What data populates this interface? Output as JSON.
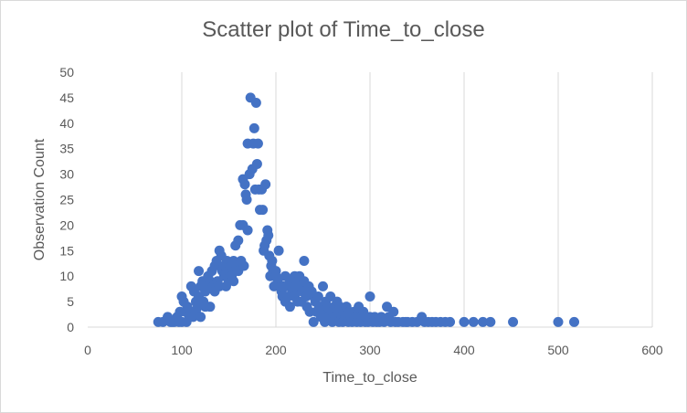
{
  "chart_data": {
    "type": "scatter",
    "title": "Scatter plot of Time_to_close",
    "xlabel": "Time_to_close",
    "ylabel": "Observation Count",
    "xlim": [
      0,
      600
    ],
    "ylim": [
      0,
      50
    ],
    "xticks": [
      0,
      100,
      200,
      300,
      400,
      500,
      600
    ],
    "yticks": [
      0,
      5,
      10,
      15,
      20,
      25,
      30,
      35,
      40,
      45,
      50
    ],
    "grid": "vertical",
    "marker_color": "#4472c4",
    "series": [
      {
        "points": [
          [
            75,
            1
          ],
          [
            80,
            1
          ],
          [
            85,
            2
          ],
          [
            88,
            1
          ],
          [
            90,
            1
          ],
          [
            92,
            1
          ],
          [
            95,
            2
          ],
          [
            97,
            1
          ],
          [
            98,
            3
          ],
          [
            100,
            6
          ],
          [
            100,
            1
          ],
          [
            102,
            5
          ],
          [
            104,
            3
          ],
          [
            105,
            1
          ],
          [
            106,
            4
          ],
          [
            108,
            2
          ],
          [
            110,
            8
          ],
          [
            110,
            3
          ],
          [
            112,
            2
          ],
          [
            113,
            7
          ],
          [
            115,
            5
          ],
          [
            115,
            3
          ],
          [
            117,
            4
          ],
          [
            118,
            11
          ],
          [
            118,
            6
          ],
          [
            120,
            8
          ],
          [
            120,
            2
          ],
          [
            122,
            9
          ],
          [
            123,
            5
          ],
          [
            125,
            7
          ],
          [
            125,
            4
          ],
          [
            127,
            8
          ],
          [
            128,
            10
          ],
          [
            130,
            9
          ],
          [
            130,
            4
          ],
          [
            132,
            11
          ],
          [
            133,
            8
          ],
          [
            135,
            12
          ],
          [
            135,
            7
          ],
          [
            137,
            13
          ],
          [
            138,
            9
          ],
          [
            140,
            15
          ],
          [
            140,
            8
          ],
          [
            142,
            14
          ],
          [
            143,
            11
          ],
          [
            145,
            10
          ],
          [
            145,
            12
          ],
          [
            147,
            8
          ],
          [
            148,
            13
          ],
          [
            150,
            9
          ],
          [
            150,
            11
          ],
          [
            152,
            12
          ],
          [
            153,
            10
          ],
          [
            155,
            13
          ],
          [
            155,
            9
          ],
          [
            157,
            16
          ],
          [
            158,
            12
          ],
          [
            160,
            17
          ],
          [
            160,
            11
          ],
          [
            162,
            20
          ],
          [
            163,
            13
          ],
          [
            165,
            29
          ],
          [
            165,
            20
          ],
          [
            166,
            12
          ],
          [
            167,
            28
          ],
          [
            168,
            26
          ],
          [
            169,
            25
          ],
          [
            170,
            19
          ],
          [
            170,
            36
          ],
          [
            172,
            30
          ],
          [
            173,
            45
          ],
          [
            175,
            31
          ],
          [
            176,
            36
          ],
          [
            177,
            39
          ],
          [
            178,
            27
          ],
          [
            179,
            44
          ],
          [
            180,
            32
          ],
          [
            181,
            36
          ],
          [
            182,
            27
          ],
          [
            183,
            23
          ],
          [
            185,
            27
          ],
          [
            186,
            23
          ],
          [
            187,
            15
          ],
          [
            188,
            16
          ],
          [
            189,
            28
          ],
          [
            190,
            17
          ],
          [
            191,
            19
          ],
          [
            192,
            18
          ],
          [
            193,
            14
          ],
          [
            194,
            10
          ],
          [
            195,
            12
          ],
          [
            196,
            13
          ],
          [
            197,
            11
          ],
          [
            198,
            8
          ],
          [
            200,
            11
          ],
          [
            200,
            10
          ],
          [
            202,
            9
          ],
          [
            203,
            15
          ],
          [
            205,
            8
          ],
          [
            206,
            7
          ],
          [
            207,
            6
          ],
          [
            208,
            8
          ],
          [
            210,
            10
          ],
          [
            210,
            5
          ],
          [
            212,
            8
          ],
          [
            213,
            6
          ],
          [
            215,
            9
          ],
          [
            215,
            4
          ],
          [
            217,
            8
          ],
          [
            218,
            7
          ],
          [
            220,
            10
          ],
          [
            220,
            6
          ],
          [
            222,
            9
          ],
          [
            223,
            5
          ],
          [
            225,
            10
          ],
          [
            226,
            8
          ],
          [
            227,
            5
          ],
          [
            228,
            7
          ],
          [
            230,
            13
          ],
          [
            230,
            9
          ],
          [
            232,
            6
          ],
          [
            233,
            4
          ],
          [
            235,
            8
          ],
          [
            236,
            3
          ],
          [
            238,
            7
          ],
          [
            240,
            1
          ],
          [
            240,
            6
          ],
          [
            242,
            5
          ],
          [
            243,
            3
          ],
          [
            245,
            6
          ],
          [
            246,
            4
          ],
          [
            248,
            2
          ],
          [
            250,
            8
          ],
          [
            250,
            3
          ],
          [
            252,
            1
          ],
          [
            253,
            5
          ],
          [
            255,
            4
          ],
          [
            256,
            2
          ],
          [
            258,
            6
          ],
          [
            260,
            3
          ],
          [
            260,
            1
          ],
          [
            262,
            4
          ],
          [
            263,
            2
          ],
          [
            265,
            5
          ],
          [
            266,
            3
          ],
          [
            267,
            1
          ],
          [
            268,
            4
          ],
          [
            270,
            2
          ],
          [
            271,
            1
          ],
          [
            272,
            3
          ],
          [
            274,
            2
          ],
          [
            275,
            4
          ],
          [
            277,
            1
          ],
          [
            278,
            3
          ],
          [
            280,
            2
          ],
          [
            281,
            1
          ],
          [
            283,
            3
          ],
          [
            285,
            2
          ],
          [
            286,
            1
          ],
          [
            288,
            4
          ],
          [
            290,
            1
          ],
          [
            291,
            2
          ],
          [
            293,
            3
          ],
          [
            295,
            1
          ],
          [
            296,
            2
          ],
          [
            298,
            1
          ],
          [
            300,
            6
          ],
          [
            300,
            2
          ],
          [
            303,
            1
          ],
          [
            305,
            2
          ],
          [
            307,
            1
          ],
          [
            310,
            1
          ],
          [
            312,
            2
          ],
          [
            315,
            1
          ],
          [
            318,
            4
          ],
          [
            320,
            2
          ],
          [
            322,
            1
          ],
          [
            325,
            3
          ],
          [
            327,
            1
          ],
          [
            330,
            1
          ],
          [
            335,
            1
          ],
          [
            338,
            1
          ],
          [
            340,
            1
          ],
          [
            345,
            1
          ],
          [
            350,
            1
          ],
          [
            355,
            2
          ],
          [
            358,
            1
          ],
          [
            362,
            1
          ],
          [
            366,
            1
          ],
          [
            370,
            1
          ],
          [
            375,
            1
          ],
          [
            380,
            1
          ],
          [
            385,
            1
          ],
          [
            400,
            1
          ],
          [
            410,
            1
          ],
          [
            420,
            1
          ],
          [
            428,
            1
          ],
          [
            452,
            1
          ],
          [
            500,
            1
          ],
          [
            517,
            1
          ]
        ]
      }
    ]
  }
}
